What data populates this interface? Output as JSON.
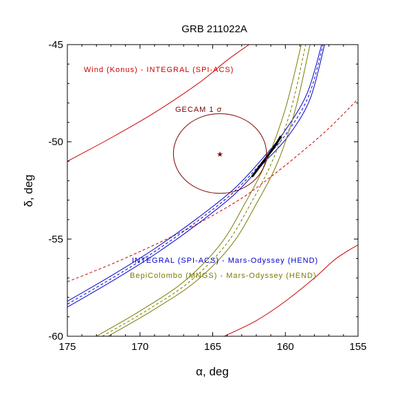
{
  "chart_data": {
    "type": "line",
    "title": "GRB 211022A",
    "xlabel": "α, deg",
    "ylabel": "δ, deg",
    "xlim": [
      175,
      155
    ],
    "ylim": [
      -60,
      -45
    ],
    "xticks": [
      175,
      170,
      165,
      160,
      155
    ],
    "yticks": [
      -60,
      -55,
      -50,
      -45
    ],
    "annotations": [
      {
        "text": "Wind (Konus) -  INTEGRAL (SPI-ACS)",
        "color": "#cc0000"
      },
      {
        "text": "GECAM 1 σ",
        "color": "#7a0000"
      },
      {
        "text": "INTEGRAL (SPI-ACS) - Mars-Odyssey (HEND)",
        "color": "#0000cc"
      },
      {
        "text": "BepiColombo (MNGS) - Mars-Odyssey (HEND)",
        "color": "#7a7a00"
      }
    ],
    "gecam_center": {
      "x": 164.5,
      "y": -50.6
    },
    "gecam_radius": {
      "x": 3.2,
      "y": 2.05
    },
    "series": [
      {
        "color": "#cc0000",
        "style": "solid",
        "x": [
          175,
          172,
          169,
          166,
          164,
          162.5
        ],
        "y": [
          -51.0,
          -49.8,
          -48.5,
          -47.0,
          -45.8,
          -45.0
        ]
      },
      {
        "color": "#cc0000",
        "style": "solid",
        "x": [
          164.2,
          162,
          160,
          158,
          156.5,
          155
        ],
        "y": [
          -60.0,
          -59.2,
          -58.2,
          -57.0,
          -56.0,
          -55.3
        ]
      },
      {
        "color": "#cc0000",
        "style": "dashed",
        "x": [
          175,
          172,
          169,
          166,
          163,
          161,
          159,
          157,
          155
        ],
        "y": [
          -57.2,
          -56.3,
          -55.3,
          -54.2,
          -52.9,
          -51.8,
          -50.6,
          -49.3,
          -47.8
        ]
      },
      {
        "color": "#0000cc",
        "style": "solid",
        "x": [
          175,
          172,
          169,
          166,
          163.5,
          161.5,
          160,
          158.5,
          157.5
        ],
        "y": [
          -58.2,
          -56.9,
          -55.5,
          -53.9,
          -52.4,
          -50.8,
          -49.4,
          -47.5,
          -45.0
        ]
      },
      {
        "color": "#0000cc",
        "style": "dashed",
        "x": [
          175,
          172,
          169,
          166,
          163.5,
          161.5,
          159.9,
          158.4,
          157.4
        ],
        "y": [
          -58.35,
          -57.05,
          -55.65,
          -54.05,
          -52.55,
          -50.95,
          -49.55,
          -47.65,
          -45.0
        ]
      },
      {
        "color": "#0000cc",
        "style": "solid",
        "x": [
          175,
          172,
          169,
          166,
          163.5,
          161.5,
          159.8,
          158.3,
          157.3
        ],
        "y": [
          -58.5,
          -57.2,
          -55.8,
          -54.2,
          -52.7,
          -51.1,
          -49.7,
          -47.8,
          -45.0
        ]
      },
      {
        "color": "#7a7a00",
        "style": "solid",
        "x": [
          173.0,
          170.0,
          167.0,
          164.5,
          162.8,
          161.3,
          160.0,
          158.9
        ],
        "y": [
          -60.0,
          -58.7,
          -57.2,
          -55.3,
          -53.2,
          -51.0,
          -48.3,
          -45.0
        ]
      },
      {
        "color": "#7a7a00",
        "style": "dashed",
        "x": [
          172.6,
          169.6,
          166.6,
          164.1,
          162.4,
          160.9,
          159.6,
          158.6
        ],
        "y": [
          -60.0,
          -58.7,
          -57.2,
          -55.3,
          -53.2,
          -51.0,
          -48.3,
          -45.0
        ]
      },
      {
        "color": "#7a7a00",
        "style": "solid",
        "x": [
          172.2,
          169.2,
          166.2,
          163.7,
          162.0,
          160.5,
          159.3,
          158.3
        ],
        "y": [
          -60.0,
          -58.7,
          -57.2,
          -55.3,
          -53.2,
          -51.0,
          -48.3,
          -45.0
        ]
      },
      {
        "color": "#000000",
        "style": "thick",
        "x": [
          162.3,
          161.8,
          161.2,
          160.7,
          160.3
        ],
        "y": [
          -51.8,
          -51.3,
          -50.7,
          -50.2,
          -49.7
        ]
      }
    ]
  }
}
